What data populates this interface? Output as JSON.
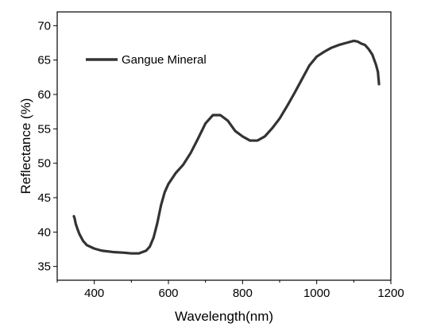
{
  "chart_data": {
    "type": "line",
    "title": "",
    "xlabel": "Wavelength(nm)",
    "ylabel": "Reflectance (%)",
    "xlim": [
      300,
      1200
    ],
    "ylim": [
      33,
      72
    ],
    "xticks": [
      400,
      600,
      800,
      1000,
      1200
    ],
    "yticks": [
      35,
      40,
      45,
      50,
      55,
      60,
      65,
      70
    ],
    "grid": false,
    "legend_position": "top-left",
    "line_color": "#333333",
    "series": [
      {
        "name": "Gangue Mineral",
        "x": [
          345,
          347,
          350,
          355,
          360,
          370,
          380,
          400,
          420,
          450,
          480,
          500,
          520,
          540,
          550,
          560,
          570,
          580,
          590,
          600,
          610,
          620,
          640,
          660,
          680,
          700,
          720,
          740,
          760,
          780,
          800,
          820,
          840,
          860,
          880,
          900,
          920,
          940,
          960,
          980,
          1000,
          1020,
          1040,
          1060,
          1080,
          1100,
          1110,
          1120,
          1130,
          1140,
          1150,
          1160,
          1165,
          1168
        ],
        "y": [
          42.3,
          42.0,
          41.2,
          40.4,
          39.7,
          38.7,
          38.1,
          37.6,
          37.3,
          37.1,
          37.0,
          36.9,
          36.9,
          37.3,
          37.9,
          39.2,
          41.3,
          43.9,
          45.8,
          47.0,
          47.8,
          48.6,
          49.8,
          51.5,
          53.6,
          55.8,
          57.0,
          57.0,
          56.2,
          54.7,
          53.9,
          53.3,
          53.3,
          53.9,
          55.1,
          56.5,
          58.3,
          60.2,
          62.2,
          64.2,
          65.5,
          66.2,
          66.8,
          67.2,
          67.5,
          67.8,
          67.7,
          67.4,
          67.2,
          66.6,
          65.8,
          64.3,
          63.3,
          61.5
        ]
      }
    ]
  }
}
